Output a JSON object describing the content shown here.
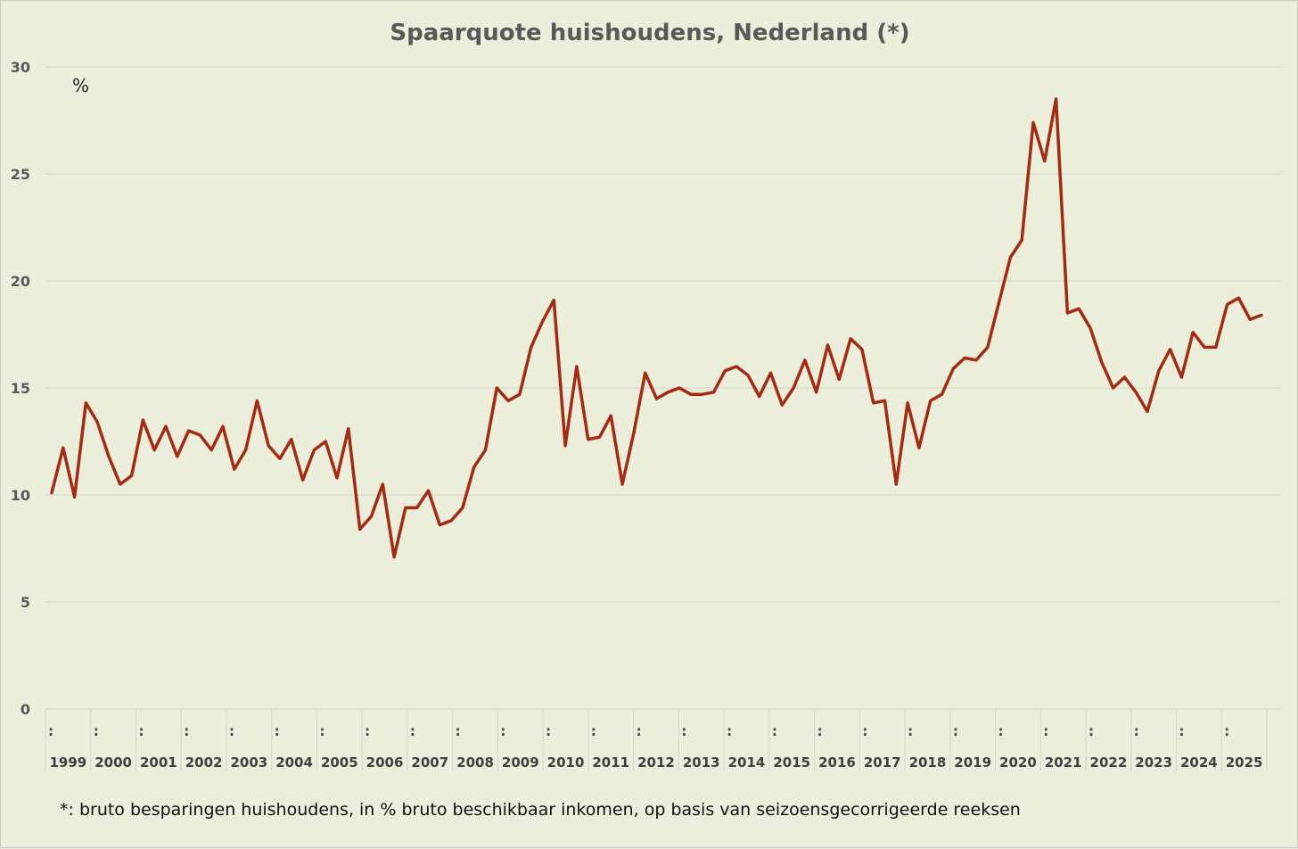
{
  "chart_data": {
    "type": "line",
    "title": "Spaarquote huishoudens, Nederland (*)",
    "unit_label": "%",
    "footnote": "*: bruto besparingen huishoudens, in % bruto beschikbaar inkomen, op basis van seizoensgecorrigeerde reeksen",
    "ylim": [
      0,
      30
    ],
    "y_ticks": [
      "0",
      "5",
      "10",
      "15",
      "20",
      "25",
      "30"
    ],
    "x_ticks": [
      "1999",
      "2000",
      "2001",
      "2002",
      "2003",
      "2004",
      "2005",
      "2006",
      "2007",
      "2008",
      "2009",
      "2010",
      "2011",
      "2012",
      "2013",
      "2014",
      "2015",
      "2016",
      "2017",
      "2018",
      "2019",
      "2020",
      "2021",
      "2022",
      "2023",
      "2024",
      "2025"
    ],
    "x_separator_label": ":",
    "grid": true,
    "line_color": "#a52a12",
    "series": [
      {
        "name": "Spaarquote huishoudens (%)",
        "frequency": "quarterly",
        "start": "1999Q1",
        "values": [
          10.1,
          12.2,
          9.9,
          14.3,
          13.4,
          11.8,
          10.5,
          10.9,
          13.5,
          12.1,
          13.2,
          11.8,
          13.0,
          12.8,
          12.1,
          13.2,
          11.2,
          12.1,
          14.4,
          12.3,
          11.7,
          12.6,
          10.7,
          12.1,
          12.5,
          10.8,
          13.1,
          8.4,
          9.0,
          10.5,
          7.1,
          9.4,
          9.4,
          10.2,
          8.6,
          8.8,
          9.4,
          11.3,
          12.1,
          15.0,
          14.4,
          14.7,
          16.9,
          18.1,
          19.1,
          12.3,
          16.0,
          12.6,
          12.7,
          13.7,
          10.5,
          12.9,
          15.7,
          14.5,
          14.8,
          15.0,
          14.7,
          14.7,
          14.8,
          15.8,
          16.0,
          15.6,
          14.6,
          15.7,
          14.2,
          15.0,
          16.3,
          14.8,
          17.0,
          15.4,
          17.3,
          16.8,
          14.3,
          14.4,
          10.5,
          14.3,
          12.2,
          14.4,
          14.7,
          15.9,
          16.4,
          16.3,
          16.9,
          19.0,
          21.1,
          21.9,
          27.4,
          25.6,
          28.5,
          18.5,
          18.7,
          17.8,
          16.2,
          15.0,
          15.5,
          14.8,
          13.9,
          15.8,
          16.8,
          15.5,
          17.6,
          16.9,
          16.9,
          18.9,
          19.2,
          18.2,
          18.4
        ]
      }
    ]
  }
}
